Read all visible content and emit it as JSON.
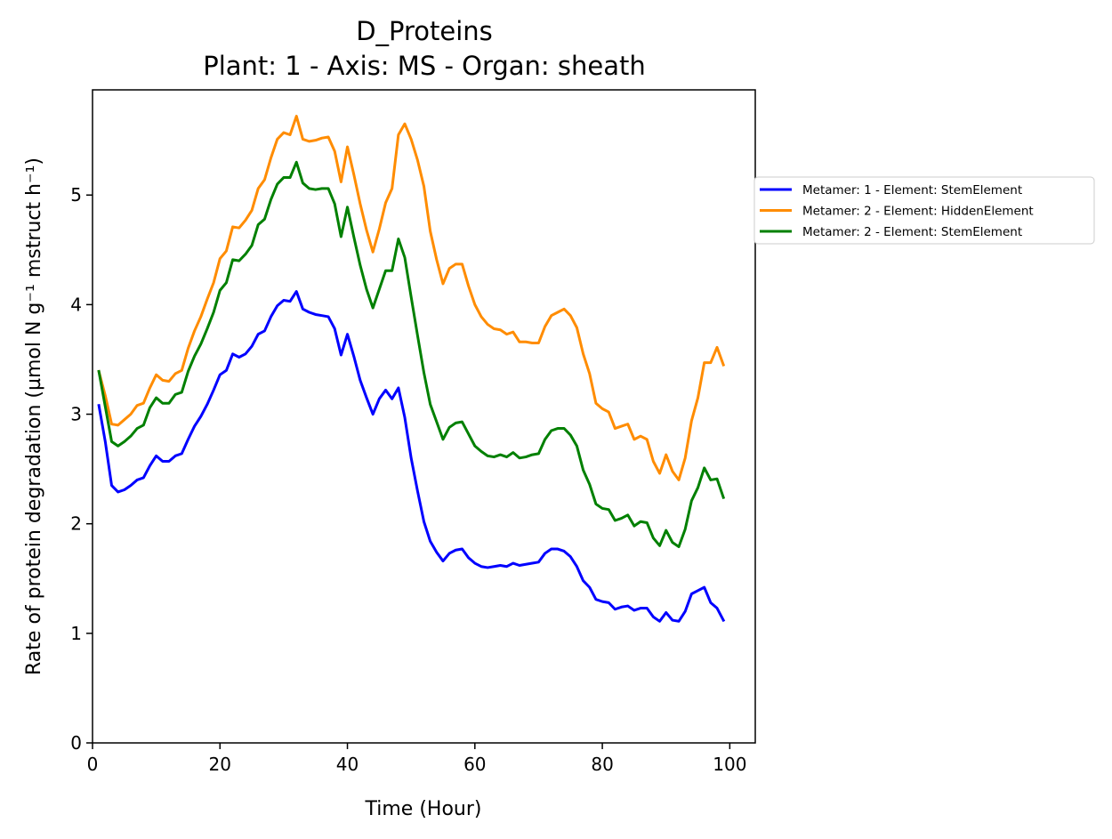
{
  "chart_data": {
    "type": "line",
    "title": "D_Proteins",
    "subtitle": "Plant: 1 - Axis: MS - Organ: sheath",
    "xlabel": "Time (Hour)",
    "ylabel": "Rate of protein degradation (µmol N g⁻¹ mstruct h⁻¹)",
    "xlim": [
      0,
      104
    ],
    "ylim": [
      0,
      5.96
    ],
    "xticks": [
      0,
      20,
      40,
      60,
      80,
      100
    ],
    "yticks": [
      0,
      1,
      2,
      3,
      4,
      5
    ],
    "grid": false,
    "legend_position": "outside-right",
    "x": [
      1,
      2,
      3,
      4,
      5,
      6,
      7,
      8,
      9,
      10,
      11,
      12,
      13,
      14,
      15,
      16,
      17,
      18,
      19,
      20,
      21,
      22,
      23,
      24,
      25,
      26,
      27,
      28,
      29,
      30,
      31,
      32,
      33,
      34,
      35,
      36,
      37,
      38,
      39,
      40,
      41,
      42,
      43,
      44,
      45,
      46,
      47,
      48,
      49,
      50,
      51,
      52,
      53,
      54,
      55,
      56,
      57,
      58,
      59,
      60,
      61,
      62,
      63,
      64,
      65,
      66,
      67,
      68,
      69,
      70,
      71,
      72,
      73,
      74,
      75,
      76,
      77,
      78,
      79,
      80,
      81,
      82,
      83,
      84,
      85,
      86,
      87,
      88,
      89,
      90,
      91,
      92,
      93,
      94,
      95,
      96,
      97,
      98,
      99
    ],
    "series": [
      {
        "name": "Metamer: 1 - Element: StemElement",
        "color": "#0000ff",
        "values": [
          3.08,
          2.75,
          2.35,
          2.29,
          2.31,
          2.35,
          2.4,
          2.42,
          2.53,
          2.62,
          2.57,
          2.57,
          2.62,
          2.64,
          2.77,
          2.89,
          2.98,
          3.09,
          3.22,
          3.36,
          3.4,
          3.55,
          3.52,
          3.55,
          3.62,
          3.73,
          3.76,
          3.89,
          3.99,
          4.04,
          4.03,
          4.12,
          3.96,
          3.93,
          3.91,
          3.9,
          3.89,
          3.78,
          3.54,
          3.73,
          3.53,
          3.31,
          3.15,
          3.0,
          3.14,
          3.22,
          3.14,
          3.24,
          2.97,
          2.6,
          2.3,
          2.02,
          1.84,
          1.74,
          1.66,
          1.73,
          1.76,
          1.77,
          1.69,
          1.64,
          1.61,
          1.6,
          1.61,
          1.62,
          1.61,
          1.64,
          1.62,
          1.63,
          1.64,
          1.65,
          1.73,
          1.77,
          1.77,
          1.75,
          1.7,
          1.61,
          1.48,
          1.42,
          1.31,
          1.29,
          1.28,
          1.22,
          1.24,
          1.25,
          1.21,
          1.23,
          1.23,
          1.15,
          1.11,
          1.19,
          1.12,
          1.11,
          1.2,
          1.36,
          1.39,
          1.42,
          1.28,
          1.23,
          1.12
        ]
      },
      {
        "name": "Metamer: 2 - Element: HiddenElement",
        "color": "#ff8c00",
        "values": [
          3.39,
          3.17,
          2.91,
          2.9,
          2.95,
          3.0,
          3.08,
          3.1,
          3.24,
          3.36,
          3.31,
          3.3,
          3.37,
          3.4,
          3.6,
          3.76,
          3.89,
          4.05,
          4.2,
          4.42,
          4.49,
          4.71,
          4.7,
          4.77,
          4.86,
          5.06,
          5.14,
          5.34,
          5.51,
          5.57,
          5.55,
          5.72,
          5.51,
          5.49,
          5.5,
          5.52,
          5.53,
          5.4,
          5.12,
          5.44,
          5.19,
          4.92,
          4.68,
          4.48,
          4.69,
          4.93,
          5.06,
          5.55,
          5.65,
          5.51,
          5.32,
          5.08,
          4.67,
          4.41,
          4.19,
          4.33,
          4.37,
          4.37,
          4.17,
          4.0,
          3.89,
          3.82,
          3.78,
          3.77,
          3.73,
          3.75,
          3.66,
          3.66,
          3.65,
          3.65,
          3.8,
          3.9,
          3.93,
          3.96,
          3.9,
          3.79,
          3.55,
          3.37,
          3.1,
          3.05,
          3.02,
          2.87,
          2.89,
          2.91,
          2.77,
          2.8,
          2.77,
          2.57,
          2.46,
          2.63,
          2.48,
          2.4,
          2.6,
          2.94,
          3.15,
          3.47,
          3.47,
          3.61,
          3.45
        ]
      },
      {
        "name": "Metamer: 2 - Element: StemElement",
        "color": "#008000",
        "values": [
          3.39,
          3.07,
          2.75,
          2.71,
          2.75,
          2.8,
          2.87,
          2.9,
          3.06,
          3.15,
          3.1,
          3.1,
          3.18,
          3.2,
          3.39,
          3.53,
          3.64,
          3.78,
          3.93,
          4.13,
          4.2,
          4.41,
          4.4,
          4.46,
          4.54,
          4.73,
          4.78,
          4.96,
          5.1,
          5.16,
          5.16,
          5.3,
          5.11,
          5.06,
          5.05,
          5.06,
          5.06,
          4.92,
          4.62,
          4.89,
          4.62,
          4.36,
          4.14,
          3.97,
          4.14,
          4.31,
          4.31,
          4.6,
          4.43,
          4.07,
          3.72,
          3.38,
          3.09,
          2.93,
          2.77,
          2.88,
          2.92,
          2.93,
          2.82,
          2.71,
          2.66,
          2.62,
          2.61,
          2.63,
          2.61,
          2.65,
          2.6,
          2.61,
          2.63,
          2.64,
          2.77,
          2.85,
          2.87,
          2.87,
          2.81,
          2.71,
          2.49,
          2.36,
          2.18,
          2.14,
          2.13,
          2.03,
          2.05,
          2.08,
          1.98,
          2.02,
          2.01,
          1.87,
          1.8,
          1.94,
          1.83,
          1.79,
          1.95,
          2.21,
          2.33,
          2.51,
          2.4,
          2.41,
          2.24
        ]
      }
    ]
  }
}
